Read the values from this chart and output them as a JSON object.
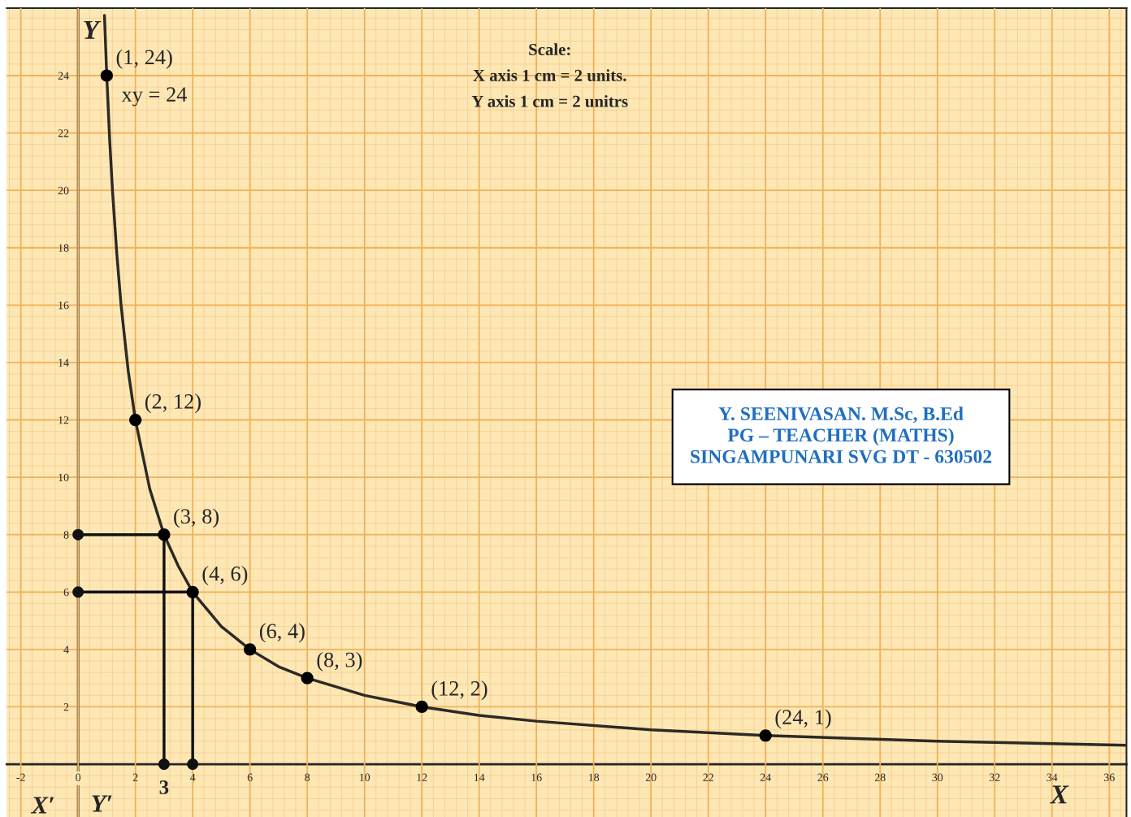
{
  "chart_data": {
    "type": "line",
    "xlabel": "X",
    "ylabel": "Y",
    "xlim": [
      -2.49,
      36.6
    ],
    "ylim": [
      -1.84,
      26.35
    ],
    "xticks": [
      -2,
      0,
      2,
      4,
      6,
      8,
      10,
      12,
      14,
      16,
      18,
      20,
      22,
      24,
      26,
      28,
      30,
      32,
      34,
      36
    ],
    "yticks": [
      2,
      4,
      6,
      8,
      10,
      12,
      14,
      16,
      18,
      20,
      22,
      24
    ],
    "grid": true,
    "series": [
      {
        "color": "#2d2a26",
        "marker": "none",
        "x": [
          0.92,
          1,
          1.1,
          1.2,
          1.35,
          1.5,
          1.75,
          2,
          2.5,
          3,
          3.5,
          4,
          5,
          6,
          7,
          8,
          10,
          12,
          14,
          16,
          20,
          24,
          30,
          36.6
        ],
        "values": [
          26.1,
          24,
          21.8,
          20,
          17.8,
          16,
          13.7,
          12,
          9.6,
          8,
          6.9,
          6,
          4.8,
          4,
          3.4,
          3,
          2.4,
          2,
          1.7,
          1.5,
          1.2,
          1,
          0.8,
          0.66
        ]
      },
      {
        "type": "scatter",
        "color": "#000000",
        "marker": "circle",
        "x": [
          1,
          2,
          3,
          4,
          6,
          8,
          12,
          24
        ],
        "values": [
          24,
          12,
          8,
          6,
          4,
          3,
          2,
          1
        ]
      },
      {
        "type": "line",
        "color": "#111111",
        "marker": "circle",
        "x": [
          3,
          3,
          0
        ],
        "values": [
          0,
          8,
          8
        ]
      },
      {
        "type": "line",
        "color": "#111111",
        "marker": "circle",
        "x": [
          0,
          4,
          4
        ],
        "values": [
          6,
          6,
          0
        ]
      }
    ],
    "annotations": [
      {
        "text": "(1, 24)",
        "x": 1,
        "y": 24
      },
      {
        "text": "xy = 24",
        "x": 1.2,
        "y": 22.7
      },
      {
        "text": "(2, 12)",
        "x": 2,
        "y": 12
      },
      {
        "text": "(3, 8)",
        "x": 3,
        "y": 8
      },
      {
        "text": "(4, 6)",
        "x": 4,
        "y": 6
      },
      {
        "text": "(6, 4)",
        "x": 6,
        "y": 4
      },
      {
        "text": "(8, 3)",
        "x": 8,
        "y": 3
      },
      {
        "text": "(12, 2)",
        "x": 12,
        "y": 2
      },
      {
        "text": "(24, 1)",
        "x": 24,
        "y": 1
      },
      {
        "text": "3",
        "x": 3,
        "y": 0
      },
      "X′",
      "Y′",
      "Scale:\nX axis 1 cm = 2 units.\nY axis 1 cm = 2 unitrs",
      "Y. SEENIVASAN. M.Sc, B.Ed\nPG – TEACHER (MATHS)\nSINGAMPUNARI SVG DT - 630502"
    ]
  }
}
